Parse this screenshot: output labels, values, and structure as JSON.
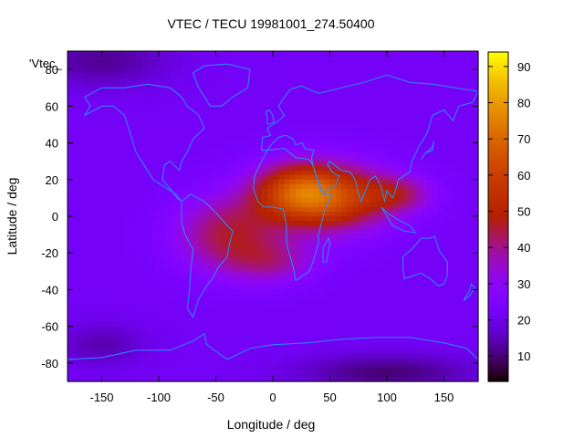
{
  "chart_data": {
    "type": "heatmap",
    "title": "VTEC / TECU 19981001_274.50400",
    "xlabel": "Longitude / deg",
    "ylabel": "Latitude / deg",
    "xlim": [
      -180,
      180
    ],
    "ylim": [
      -90,
      90
    ],
    "xticks": [
      -150,
      -100,
      -50,
      0,
      50,
      100,
      150
    ],
    "yticks": [
      80,
      60,
      40,
      20,
      0,
      -20,
      -40,
      -60,
      -80
    ],
    "xtick_labels": [
      "-150",
      "-100",
      "-50",
      "0",
      "50",
      "100",
      "150"
    ],
    "ytick_labels": [
      "80",
      "60",
      "40",
      "20",
      "0",
      "-20",
      "-40",
      "-60",
      "-80"
    ],
    "colorbar": {
      "range": [
        3,
        94
      ],
      "ticks": [
        10,
        20,
        30,
        40,
        50,
        60,
        70,
        80,
        90
      ],
      "tick_labels": [
        "10",
        "20",
        "30",
        "40",
        "50",
        "60",
        "70",
        "80",
        "90"
      ],
      "palette": "black-purple-red-orange-yellow"
    },
    "legend_label": "'Vtec_",
    "overlay": "coastlines",
    "grid": false,
    "field_model": {
      "background_value": 22,
      "features": [
        {
          "lon": 45,
          "lat": 10,
          "amp": 42,
          "lon_sigma": 55,
          "lat_sigma": 18
        },
        {
          "lon": 20,
          "lat": 15,
          "amp": 18,
          "lon_sigma": 35,
          "lat_sigma": 14
        },
        {
          "lon": -40,
          "lat": -10,
          "amp": 22,
          "lon_sigma": 45,
          "lat_sigma": 20
        },
        {
          "lon": 110,
          "lat": 12,
          "amp": 16,
          "lon_sigma": 30,
          "lat_sigma": 10
        },
        {
          "lon": 0,
          "lat": -25,
          "amp": 14,
          "lon_sigma": 40,
          "lat_sigma": 12
        },
        {
          "lon": -150,
          "lat": 85,
          "amp": -10,
          "lon_sigma": 60,
          "lat_sigma": 15
        },
        {
          "lon": 100,
          "lat": -85,
          "amp": -12,
          "lon_sigma": 80,
          "lat_sigma": 10
        },
        {
          "lon": -150,
          "lat": -70,
          "amp": -8,
          "lon_sigma": 40,
          "lat_sigma": 12
        }
      ]
    },
    "coastlines": [
      {
        "name": "north-america",
        "points": [
          [
            -165,
            65
          ],
          [
            -150,
            70
          ],
          [
            -130,
            70
          ],
          [
            -110,
            72
          ],
          [
            -90,
            70
          ],
          [
            -80,
            65
          ],
          [
            -75,
            60
          ],
          [
            -65,
            55
          ],
          [
            -60,
            48
          ],
          [
            -70,
            42
          ],
          [
            -75,
            35
          ],
          [
            -80,
            30
          ],
          [
            -82,
            25
          ],
          [
            -90,
            30
          ],
          [
            -95,
            28
          ],
          [
            -97,
            20
          ],
          [
            -90,
            15
          ],
          [
            -84,
            10
          ],
          [
            -80,
            8
          ],
          [
            -85,
            12
          ],
          [
            -95,
            16
          ],
          [
            -105,
            20
          ],
          [
            -110,
            25
          ],
          [
            -115,
            30
          ],
          [
            -120,
            35
          ],
          [
            -125,
            45
          ],
          [
            -130,
            55
          ],
          [
            -140,
            60
          ],
          [
            -150,
            60
          ],
          [
            -165,
            55
          ],
          [
            -160,
            60
          ],
          [
            -165,
            65
          ]
        ]
      },
      {
        "name": "greenland",
        "points": [
          [
            -55,
            60
          ],
          [
            -45,
            60
          ],
          [
            -35,
            65
          ],
          [
            -22,
            70
          ],
          [
            -20,
            80
          ],
          [
            -40,
            83
          ],
          [
            -60,
            82
          ],
          [
            -70,
            78
          ],
          [
            -65,
            70
          ],
          [
            -55,
            60
          ]
        ]
      },
      {
        "name": "south-america",
        "points": [
          [
            -80,
            8
          ],
          [
            -72,
            12
          ],
          [
            -60,
            8
          ],
          [
            -50,
            2
          ],
          [
            -40,
            -5
          ],
          [
            -35,
            -8
          ],
          [
            -38,
            -15
          ],
          [
            -40,
            -22
          ],
          [
            -48,
            -28
          ],
          [
            -52,
            -33
          ],
          [
            -58,
            -38
          ],
          [
            -65,
            -45
          ],
          [
            -70,
            -55
          ],
          [
            -75,
            -50
          ],
          [
            -73,
            -40
          ],
          [
            -72,
            -30
          ],
          [
            -70,
            -18
          ],
          [
            -77,
            -10
          ],
          [
            -80,
            -3
          ],
          [
            -80,
            8
          ]
        ]
      },
      {
        "name": "africa",
        "points": [
          [
            -17,
            15
          ],
          [
            -16,
            22
          ],
          [
            -10,
            30
          ],
          [
            -5,
            36
          ],
          [
            10,
            37
          ],
          [
            20,
            32
          ],
          [
            32,
            31
          ],
          [
            35,
            28
          ],
          [
            43,
            12
          ],
          [
            51,
            12
          ],
          [
            45,
            2
          ],
          [
            40,
            -10
          ],
          [
            40,
            -15
          ],
          [
            35,
            -25
          ],
          [
            32,
            -30
          ],
          [
            20,
            -35
          ],
          [
            18,
            -28
          ],
          [
            12,
            -15
          ],
          [
            12,
            -5
          ],
          [
            9,
            4
          ],
          [
            0,
            5
          ],
          [
            -8,
            5
          ],
          [
            -13,
            8
          ],
          [
            -17,
            15
          ]
        ]
      },
      {
        "name": "eurasia",
        "points": [
          [
            -10,
            36
          ],
          [
            -9,
            43
          ],
          [
            -2,
            44
          ],
          [
            -5,
            48
          ],
          [
            5,
            52
          ],
          [
            10,
            55
          ],
          [
            5,
            60
          ],
          [
            8,
            63
          ],
          [
            15,
            69
          ],
          [
            25,
            71
          ],
          [
            40,
            67
          ],
          [
            60,
            70
          ],
          [
            80,
            73
          ],
          [
            100,
            77
          ],
          [
            120,
            73
          ],
          [
            140,
            72
          ],
          [
            160,
            70
          ],
          [
            180,
            68
          ],
          [
            175,
            62
          ],
          [
            163,
            60
          ],
          [
            158,
            52
          ],
          [
            150,
            58
          ],
          [
            140,
            55
          ],
          [
            135,
            45
          ],
          [
            128,
            38
          ],
          [
            126,
            35
          ],
          [
            122,
            30
          ],
          [
            120,
            24
          ],
          [
            110,
            20
          ],
          [
            108,
            15
          ],
          [
            105,
            10
          ],
          [
            100,
            14
          ],
          [
            98,
            8
          ],
          [
            95,
            16
          ],
          [
            90,
            22
          ],
          [
            85,
            20
          ],
          [
            80,
            12
          ],
          [
            77,
            8
          ],
          [
            72,
            20
          ],
          [
            68,
            24
          ],
          [
            60,
            25
          ],
          [
            56,
            27
          ],
          [
            50,
            30
          ],
          [
            48,
            28
          ],
          [
            52,
            24
          ],
          [
            58,
            22
          ],
          [
            55,
            17
          ],
          [
            45,
            13
          ],
          [
            43,
            15
          ],
          [
            38,
            22
          ],
          [
            35,
            28
          ],
          [
            34,
            32
          ],
          [
            36,
            36
          ],
          [
            28,
            37
          ],
          [
            26,
            40
          ],
          [
            20,
            39
          ],
          [
            18,
            42
          ],
          [
            12,
            44
          ],
          [
            10,
            44
          ],
          [
            5,
            43
          ],
          [
            0,
            40
          ],
          [
            -5,
            36
          ],
          [
            -10,
            36
          ]
        ]
      },
      {
        "name": "australia",
        "points": [
          [
            114,
            -22
          ],
          [
            122,
            -18
          ],
          [
            130,
            -12
          ],
          [
            137,
            -12
          ],
          [
            142,
            -11
          ],
          [
            146,
            -19
          ],
          [
            153,
            -25
          ],
          [
            153,
            -32
          ],
          [
            150,
            -37
          ],
          [
            145,
            -38
          ],
          [
            138,
            -34
          ],
          [
            130,
            -31
          ],
          [
            115,
            -34
          ],
          [
            114,
            -26
          ],
          [
            114,
            -22
          ]
        ]
      },
      {
        "name": "antarctica",
        "points": [
          [
            -180,
            -78
          ],
          [
            -150,
            -77
          ],
          [
            -120,
            -73
          ],
          [
            -90,
            -73
          ],
          [
            -70,
            -68
          ],
          [
            -60,
            -64
          ],
          [
            -58,
            -70
          ],
          [
            -40,
            -78
          ],
          [
            -20,
            -72
          ],
          [
            0,
            -70
          ],
          [
            30,
            -69
          ],
          [
            60,
            -67
          ],
          [
            90,
            -66
          ],
          [
            120,
            -66
          ],
          [
            150,
            -69
          ],
          [
            170,
            -72
          ],
          [
            180,
            -78
          ]
        ]
      },
      {
        "name": "madagascar",
        "points": [
          [
            44,
            -25
          ],
          [
            47,
            -25
          ],
          [
            50,
            -15
          ],
          [
            49,
            -12
          ],
          [
            44,
            -17
          ],
          [
            44,
            -25
          ]
        ]
      },
      {
        "name": "japan",
        "points": [
          [
            130,
            31
          ],
          [
            133,
            34
          ],
          [
            136,
            35
          ],
          [
            140,
            36
          ],
          [
            141,
            41
          ],
          [
            140,
            38
          ],
          [
            137,
            36
          ],
          [
            133,
            34
          ],
          [
            130,
            31
          ]
        ]
      },
      {
        "name": "uk",
        "points": [
          [
            -5,
            50
          ],
          [
            1,
            51
          ],
          [
            0,
            55
          ],
          [
            -3,
            58
          ],
          [
            -6,
            57
          ],
          [
            -5,
            54
          ],
          [
            -5,
            50
          ]
        ]
      },
      {
        "name": "indonesia",
        "points": [
          [
            95,
            5
          ],
          [
            105,
            -5
          ],
          [
            115,
            -8
          ],
          [
            125,
            -9
          ],
          [
            120,
            -5
          ],
          [
            110,
            -2
          ],
          [
            100,
            2
          ],
          [
            95,
            5
          ]
        ]
      },
      {
        "name": "new-zealand",
        "points": [
          [
            167,
            -46
          ],
          [
            172,
            -41
          ],
          [
            174,
            -37
          ],
          [
            177,
            -39
          ],
          [
            173,
            -43
          ],
          [
            167,
            -46
          ]
        ]
      }
    ]
  }
}
